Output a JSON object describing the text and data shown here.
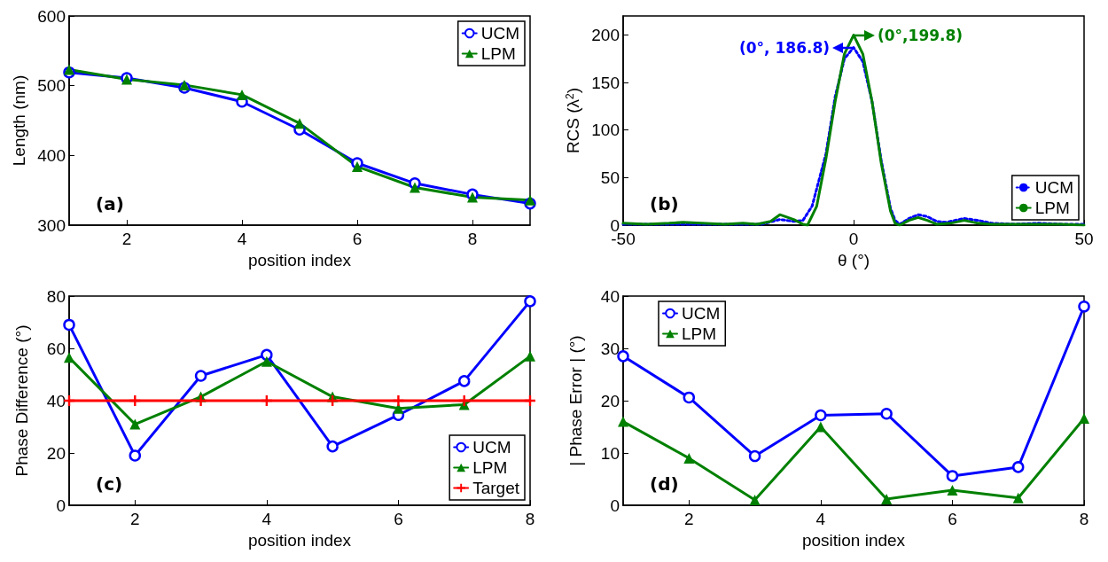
{
  "chart_data": [
    {
      "type": "line",
      "xlabel": "position index",
      "ylabel": "Length (nm)",
      "x": [
        1,
        2,
        3,
        4,
        5,
        6,
        7,
        8,
        9
      ],
      "xlim": [
        1,
        9
      ],
      "xticks": [
        2,
        4,
        6,
        8
      ],
      "ylim": [
        300,
        600
      ],
      "yticks": [
        300,
        400,
        500,
        600
      ],
      "legend": "top right",
      "grid": false,
      "annotations": [
        "(a)"
      ],
      "series": [
        {
          "name": "UCM",
          "color": "#0000ff",
          "marker": "circle",
          "values": [
            519,
            511,
            497,
            477,
            437,
            389,
            360,
            344,
            331
          ]
        },
        {
          "name": "LPM",
          "color": "#008000",
          "marker": "triangle",
          "values": [
            523,
            509,
            501,
            487,
            446,
            384,
            354,
            340,
            336
          ]
        }
      ]
    },
    {
      "type": "line",
      "xlabel": "θ (°)",
      "ylabel": "RCS (λ$^{2}$)",
      "xlim": [
        -50,
        50
      ],
      "xticks": [
        -50,
        0,
        50
      ],
      "ylim": [
        0,
        220
      ],
      "yticks": [
        0,
        50,
        100,
        150,
        200
      ],
      "legend": "bottom right",
      "grid": false,
      "annotations": [
        "(b)",
        {
          "text": "(0°, 186.8)",
          "x": 0,
          "y": 186.8
        },
        {
          "text": "(0°,199.8)",
          "x": 0,
          "y": 199.8
        }
      ],
      "series": [
        {
          "name": "UCM",
          "color": "#0000ff",
          "marker": "none",
          "line_style": "dotted",
          "x": [
            -50,
            -40,
            -30,
            -20,
            -16,
            -13,
            -11,
            -9,
            -6,
            -4,
            -2,
            0,
            2,
            4,
            6,
            8,
            9,
            10,
            12,
            14,
            16,
            18,
            20,
            24,
            27,
            30,
            35,
            40,
            45,
            50
          ],
          "values": [
            1,
            1,
            1,
            1,
            6,
            4,
            5,
            20,
            75,
            135,
            175,
            186.8,
            172,
            130,
            68,
            18,
            5,
            1,
            7,
            11,
            9,
            4,
            3,
            7,
            5,
            2,
            1,
            2,
            1,
            1
          ]
        },
        {
          "name": "LPM",
          "color": "#008000",
          "marker": "none",
          "line_style": "solid",
          "x": [
            -50,
            -45,
            -40,
            -37,
            -33,
            -28,
            -24,
            -21,
            -18,
            -16,
            -13,
            -11,
            -10,
            -8,
            -6,
            -4,
            -2,
            0,
            2,
            4,
            6,
            8,
            9,
            10,
            12,
            14,
            16,
            18,
            21,
            24,
            27,
            30,
            35,
            40,
            45,
            50
          ],
          "values": [
            2,
            1,
            2,
            3,
            2,
            1,
            2,
            1,
            4,
            11,
            6,
            1,
            0,
            20,
            70,
            130,
            180,
            199.8,
            180,
            130,
            65,
            15,
            2,
            0,
            5,
            8,
            5,
            1,
            2,
            5,
            2,
            1,
            1,
            1,
            1,
            0
          ]
        }
      ]
    },
    {
      "type": "line",
      "xlabel": "position index",
      "ylabel": "Phase Difference (°)",
      "x": [
        1,
        2,
        3,
        4,
        5,
        6,
        7,
        8
      ],
      "xlim": [
        1,
        8
      ],
      "xticks": [
        2,
        4,
        6,
        8
      ],
      "ylim": [
        0,
        80
      ],
      "yticks": [
        0,
        20,
        40,
        60,
        80
      ],
      "legend": "bottom right",
      "grid": false,
      "annotations": [
        "(c)"
      ],
      "series": [
        {
          "name": "UCM",
          "color": "#0000ff",
          "marker": "circle",
          "values": [
            69,
            19,
            49.5,
            57.5,
            22.5,
            34.5,
            47.5,
            78
          ]
        },
        {
          "name": "LPM",
          "color": "#008000",
          "marker": "triangle",
          "values": [
            56.5,
            31,
            41.5,
            55,
            41.5,
            37,
            38.5,
            57
          ]
        },
        {
          "name": "Target",
          "color": "#ff0000",
          "marker": "cross",
          "values": [
            40,
            40,
            40,
            40,
            40,
            40,
            40,
            40
          ]
        }
      ]
    },
    {
      "type": "line",
      "xlabel": "position index",
      "ylabel": "| Phase Error | (°)",
      "x": [
        1,
        2,
        3,
        4,
        5,
        6,
        7,
        8
      ],
      "xlim": [
        1,
        8
      ],
      "xticks": [
        2,
        4,
        6,
        8
      ],
      "ylim": [
        0,
        40
      ],
      "yticks": [
        0,
        10,
        20,
        30,
        40
      ],
      "legend": "top left",
      "grid": false,
      "annotations": [
        "(d)"
      ],
      "series": [
        {
          "name": "UCM",
          "color": "#0000ff",
          "marker": "circle",
          "values": [
            28.5,
            20.6,
            9.4,
            17.2,
            17.5,
            5.6,
            7.3,
            38
          ]
        },
        {
          "name": "LPM",
          "color": "#008000",
          "marker": "triangle",
          "values": [
            16,
            9,
            1,
            15,
            1.2,
            2.9,
            1.4,
            16.6
          ]
        }
      ]
    }
  ]
}
